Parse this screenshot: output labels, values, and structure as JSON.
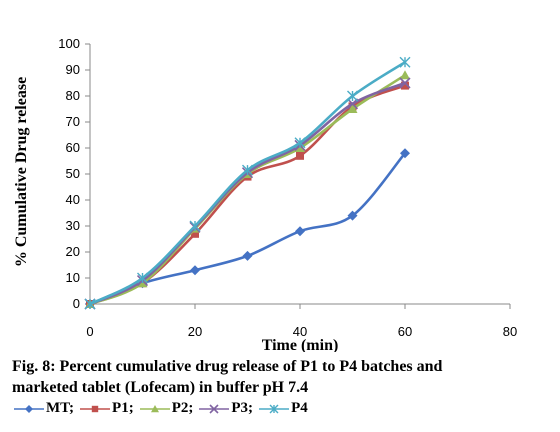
{
  "chart_data": {
    "type": "line",
    "xlabel": "Time (min)",
    "ylabel": "% Cumulative Drug  release",
    "xlim": [
      0,
      80
    ],
    "ylim": [
      0,
      100
    ],
    "xticks": [
      0,
      20,
      40,
      60,
      80
    ],
    "yticks": [
      0,
      10,
      20,
      30,
      40,
      50,
      60,
      70,
      80,
      90,
      100
    ],
    "grid": false,
    "x": [
      0,
      10,
      20,
      30,
      40,
      50,
      60
    ],
    "series": [
      {
        "name": "MT",
        "color": "#4472C4",
        "marker": "diamond",
        "values": [
          0,
          8,
          13,
          18.5,
          28,
          34,
          58
        ]
      },
      {
        "name": "P1",
        "color": "#C0504D",
        "marker": "square",
        "values": [
          0,
          8,
          27,
          49,
          57,
          76,
          84
        ]
      },
      {
        "name": "P2",
        "color": "#9BBB59",
        "marker": "triangle",
        "values": [
          0,
          8,
          29,
          50,
          60,
          75,
          88
        ]
      },
      {
        "name": "P3",
        "color": "#8064A2",
        "marker": "x",
        "values": [
          0,
          9,
          29.5,
          50.5,
          61,
          77,
          85
        ]
      },
      {
        "name": "P4",
        "color": "#4BACC6",
        "marker": "star",
        "values": [
          0,
          10,
          30,
          51.5,
          62,
          80,
          93
        ]
      }
    ]
  },
  "caption": {
    "line1": "Fig. 8: Percent cumulative drug release of P1 to P4 batches and",
    "line2": "marketed tablet (Lofecam) in buffer pH 7.4"
  },
  "legend": {
    "items": [
      {
        "label": "MT;",
        "color": "#4472C4",
        "marker": "diamond"
      },
      {
        "label": "P1;",
        "color": "#C0504D",
        "marker": "square"
      },
      {
        "label": "P2;",
        "color": "#9BBB59",
        "marker": "triangle"
      },
      {
        "label": "P3;",
        "color": "#8064A2",
        "marker": "x"
      },
      {
        "label": "P4",
        "color": "#4BACC6",
        "marker": "star"
      }
    ]
  }
}
